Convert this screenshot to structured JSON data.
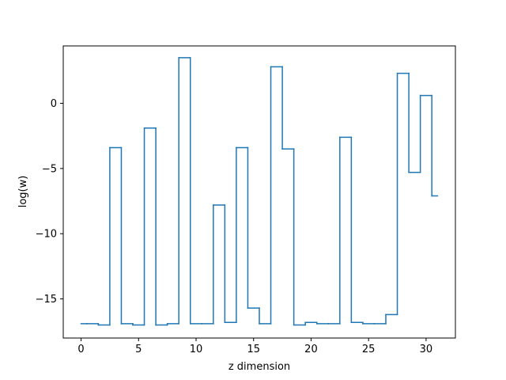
{
  "chart_data": {
    "type": "line",
    "step": "mid",
    "xlabel": "z dimension",
    "ylabel": "log(w)",
    "xlim": [
      -1.55,
      32.55
    ],
    "ylim": [
      -18.0,
      4.4
    ],
    "xticks": [
      0,
      5,
      10,
      15,
      20,
      25,
      30
    ],
    "yticks": [
      -15,
      -10,
      -5,
      0
    ],
    "grid": false,
    "color": "#1f77b4",
    "series": [
      {
        "x": [
          0,
          1,
          2,
          3,
          4,
          5,
          6,
          7,
          8,
          9,
          10,
          11,
          12,
          13,
          14,
          15,
          16,
          17,
          18,
          19,
          20,
          21,
          22,
          23,
          24,
          25,
          26,
          27,
          28,
          29,
          30,
          31
        ],
        "values": [
          -16.9,
          -16.9,
          -17.0,
          -3.4,
          -16.9,
          -17.0,
          -1.9,
          -17.0,
          -16.9,
          3.5,
          -16.9,
          -16.9,
          -7.8,
          -16.8,
          -3.4,
          -15.7,
          -16.9,
          2.8,
          -3.5,
          -17.0,
          -16.8,
          -16.9,
          -16.9,
          -2.6,
          -16.8,
          -16.9,
          -16.9,
          -16.2,
          2.3,
          -5.3,
          0.6,
          -7.1
        ]
      }
    ]
  }
}
